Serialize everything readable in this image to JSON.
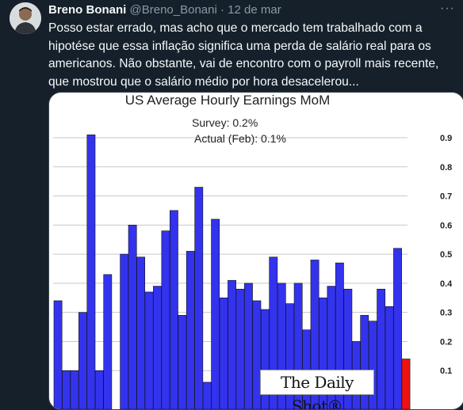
{
  "tweet": {
    "author_name": "Breno Bonani",
    "handle": "@Breno_Bonani",
    "separator": "·",
    "date": "12 de mar",
    "more_icon": "more-horizontal-icon",
    "text": "Posso estar errado, mas acho que o mercado tem trabalhado com a hipotése que essa inflação significa uma perda de salário real para os americanos. Não obstante, vai de encontro com o payroll mais recente, que mostrou que o salário médio por hora desacelerou..."
  },
  "chart_data": {
    "type": "bar",
    "title": "US Average Hourly Earnings MoM",
    "annotations": {
      "survey": "Survey:  0.2%",
      "actual": "Actual (Feb):  0.1%"
    },
    "yticks": [
      "0.9",
      "0.8",
      "0.7",
      "0.6",
      "0.5",
      "0.4",
      "0.3",
      "0.2",
      "0.1"
    ],
    "ylim": [
      0,
      0.95
    ],
    "grid": true,
    "values": [
      0.34,
      0.1,
      0.1,
      0.3,
      0.91,
      0.1,
      0.43,
      0.0,
      0.5,
      0.6,
      0.49,
      0.37,
      0.39,
      0.58,
      0.65,
      0.29,
      0.51,
      0.73,
      0.06,
      0.62,
      0.35,
      0.41,
      0.38,
      0.4,
      0.34,
      0.31,
      0.49,
      0.4,
      0.33,
      0.4,
      0.24,
      0.48,
      0.35,
      0.39,
      0.47,
      0.38,
      0.2,
      0.29,
      0.27,
      0.38,
      0.32,
      0.52,
      0.14
    ],
    "highlight_last": true,
    "colors": {
      "bar": "#3333ee",
      "last_bar": "#ee1111",
      "grid": "#c8c8c8"
    },
    "watermark": "The Daily Shot"
  }
}
